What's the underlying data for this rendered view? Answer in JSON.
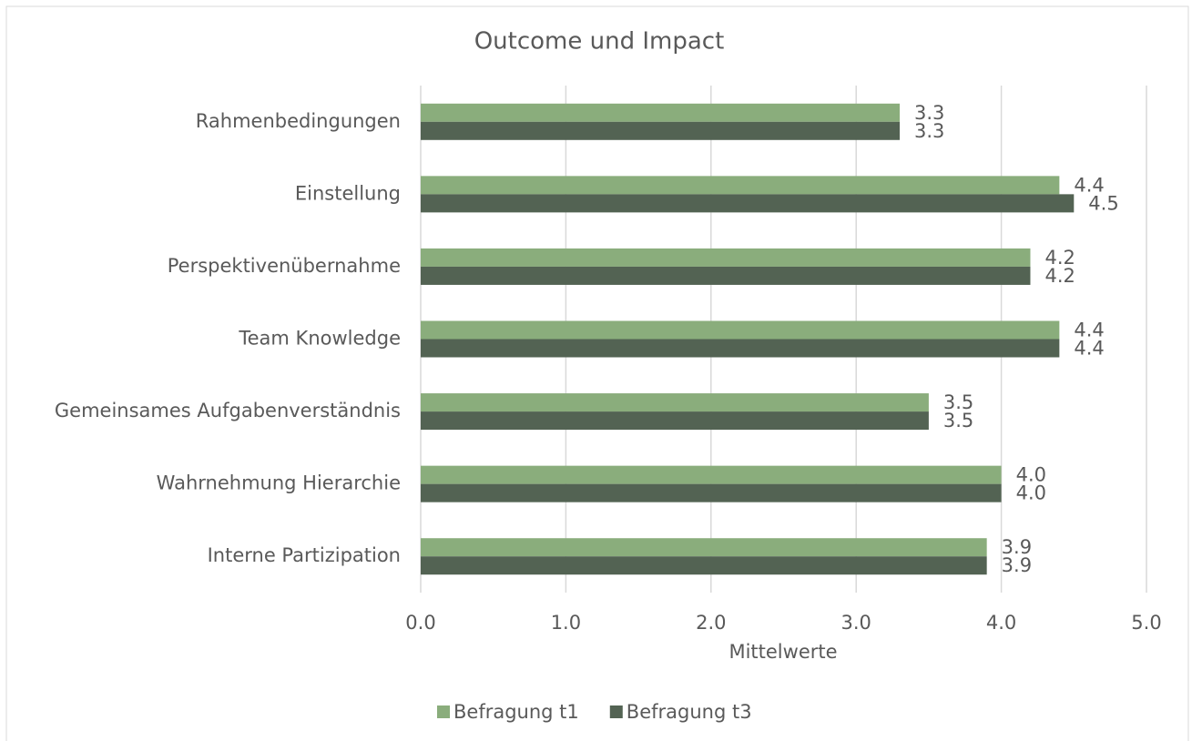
{
  "chart_data": {
    "type": "barh",
    "title": "Outcome und Impact",
    "xlabel": "Mittelwerte",
    "categories": [
      "Rahmenbedingungen",
      "Einstellung",
      "Perspektivenübernahme",
      "Team Knowledge",
      "Gemeinsames Aufgabenverständnis",
      "Wahrnehmung Hierarchie",
      "Interne Partizipation"
    ],
    "series": [
      {
        "name": "Befragung t1",
        "color": "#8aad7c",
        "values": [
          3.3,
          4.4,
          4.2,
          4.4,
          3.5,
          4.0,
          3.9
        ],
        "value_labels": [
          "3.3",
          "4.4",
          "4.2",
          "4.4",
          "3.5",
          "4.0",
          "3.9"
        ]
      },
      {
        "name": "Befragung t3",
        "color": "#536353",
        "values": [
          3.3,
          4.5,
          4.2,
          4.4,
          3.5,
          4.0,
          3.9
        ],
        "value_labels": [
          "3.3",
          "4.5",
          "4.2",
          "4.4",
          "3.5",
          "4.0",
          "3.9"
        ]
      }
    ],
    "xlim": [
      0,
      5
    ],
    "xticks": [
      {
        "value": 0,
        "label": "0.0"
      },
      {
        "value": 1,
        "label": "1.0"
      },
      {
        "value": 2,
        "label": "2.0"
      },
      {
        "value": 3,
        "label": "3.0"
      },
      {
        "value": 4,
        "label": "4.0"
      },
      {
        "value": 5,
        "label": "5.0"
      }
    ],
    "grid": true,
    "legend": "bottom"
  }
}
